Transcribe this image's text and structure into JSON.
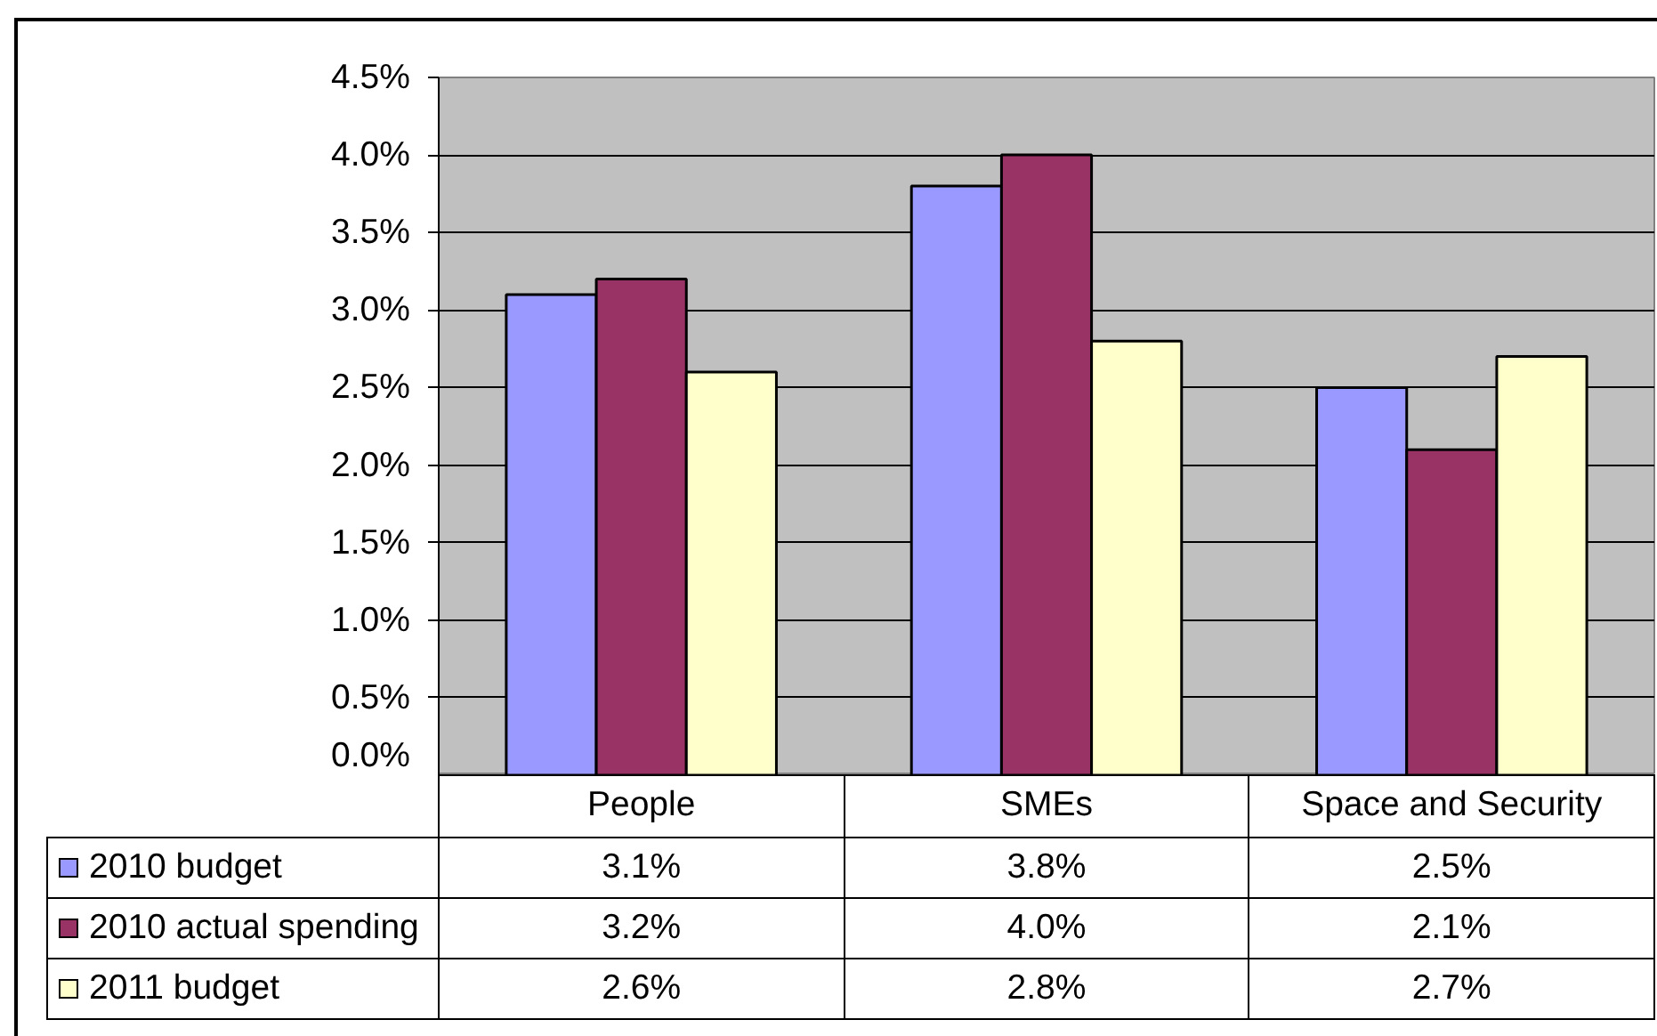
{
  "chart_data": {
    "type": "bar",
    "categories": [
      "People",
      "SMEs",
      "Space and Security"
    ],
    "series": [
      {
        "name": "2010 budget",
        "color": "#9999ff",
        "values": [
          3.1,
          3.8,
          2.5
        ],
        "value_labels": [
          "3.1%",
          "3.8%",
          "2.5%"
        ]
      },
      {
        "name": "2010 actual spending",
        "color": "#993366",
        "values": [
          3.2,
          4.0,
          2.1
        ],
        "value_labels": [
          "3.2%",
          "4.0%",
          "2.1%"
        ]
      },
      {
        "name": "2011 budget",
        "color": "#ffffcc",
        "values": [
          2.6,
          2.8,
          2.7
        ],
        "value_labels": [
          "2.6%",
          "2.8%",
          "2.7%"
        ]
      }
    ],
    "ylim": [
      0,
      4.5
    ],
    "yticks": [
      {
        "value": 0,
        "label": "0.0%"
      },
      {
        "value": 0.5,
        "label": "0.5%"
      },
      {
        "value": 1,
        "label": "1.0%"
      },
      {
        "value": 1.5,
        "label": "1.5%"
      },
      {
        "value": 2,
        "label": "2.0%"
      },
      {
        "value": 2.5,
        "label": "2.5%"
      },
      {
        "value": 3,
        "label": "3.0%"
      },
      {
        "value": 3.5,
        "label": "3.5%"
      },
      {
        "value": 4,
        "label": "4.0%"
      },
      {
        "value": 4.5,
        "label": "4.5%"
      }
    ],
    "grid": "y",
    "legend": "bottom left"
  }
}
